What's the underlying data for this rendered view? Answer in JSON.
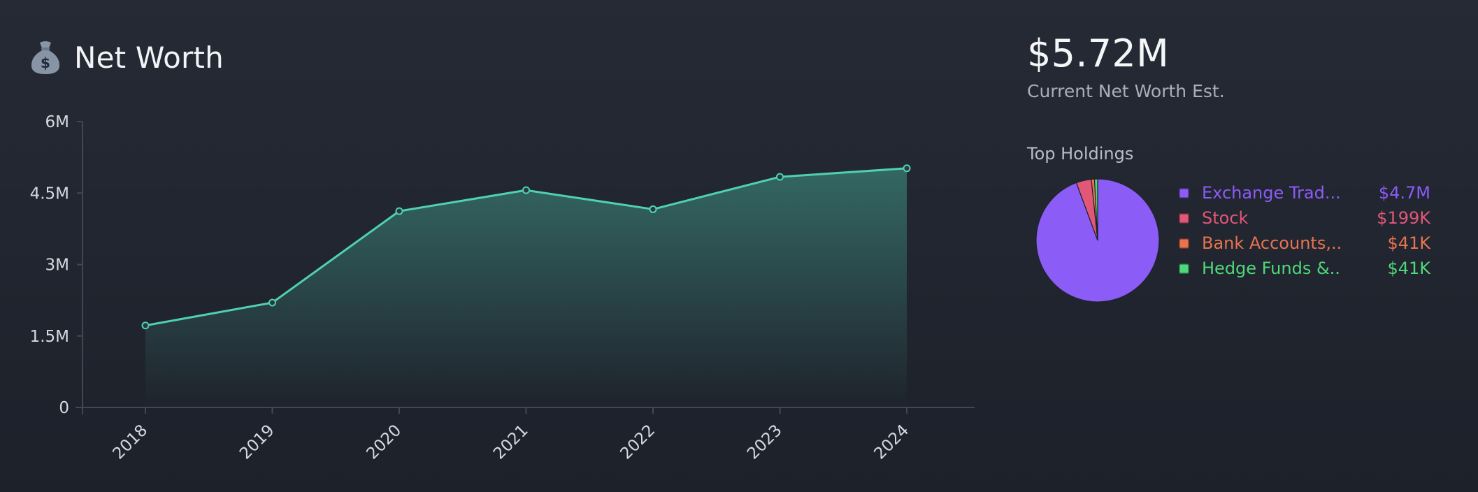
{
  "header": {
    "title": "Net Worth",
    "icon": "money-bag-icon"
  },
  "summary": {
    "value": "$5.72M",
    "label": "Current Net Worth Est."
  },
  "holdings": {
    "title": "Top Holdings",
    "items": [
      {
        "label": "Exchange Trad...",
        "value": "$4.7M",
        "amount": 4700000,
        "color": "#8b5cf6"
      },
      {
        "label": "Stock",
        "value": "$199K",
        "amount": 199000,
        "color": "#e05777"
      },
      {
        "label": "Bank Accounts,...",
        "value": "$41K",
        "amount": 41000,
        "color": "#e8734f"
      },
      {
        "label": "Hedge Funds &...",
        "value": "$41K",
        "amount": 41000,
        "color": "#4fd879"
      }
    ]
  },
  "colors": {
    "line": "#4fd1b1",
    "background": "#232833",
    "axis": "#3e4958"
  },
  "chart_data": {
    "type": "area",
    "title": "Net Worth",
    "x": [
      "2018",
      "2019",
      "2020",
      "2021",
      "2022",
      "2023",
      "2024"
    ],
    "series": [
      {
        "values": [
          1720000,
          2200000,
          4120000,
          4560000,
          4160000,
          4840000,
          5020000
        ]
      }
    ],
    "ylim": [
      0,
      6000000
    ],
    "yticks": [
      {
        "value": 0,
        "label": "0"
      },
      {
        "value": 1500000,
        "label": "1.5M"
      },
      {
        "value": 3000000,
        "label": "3M"
      },
      {
        "value": 4500000,
        "label": "4.5M"
      },
      {
        "value": 6000000,
        "label": "6M"
      }
    ],
    "grid": false,
    "xlabel": "",
    "ylabel": ""
  }
}
